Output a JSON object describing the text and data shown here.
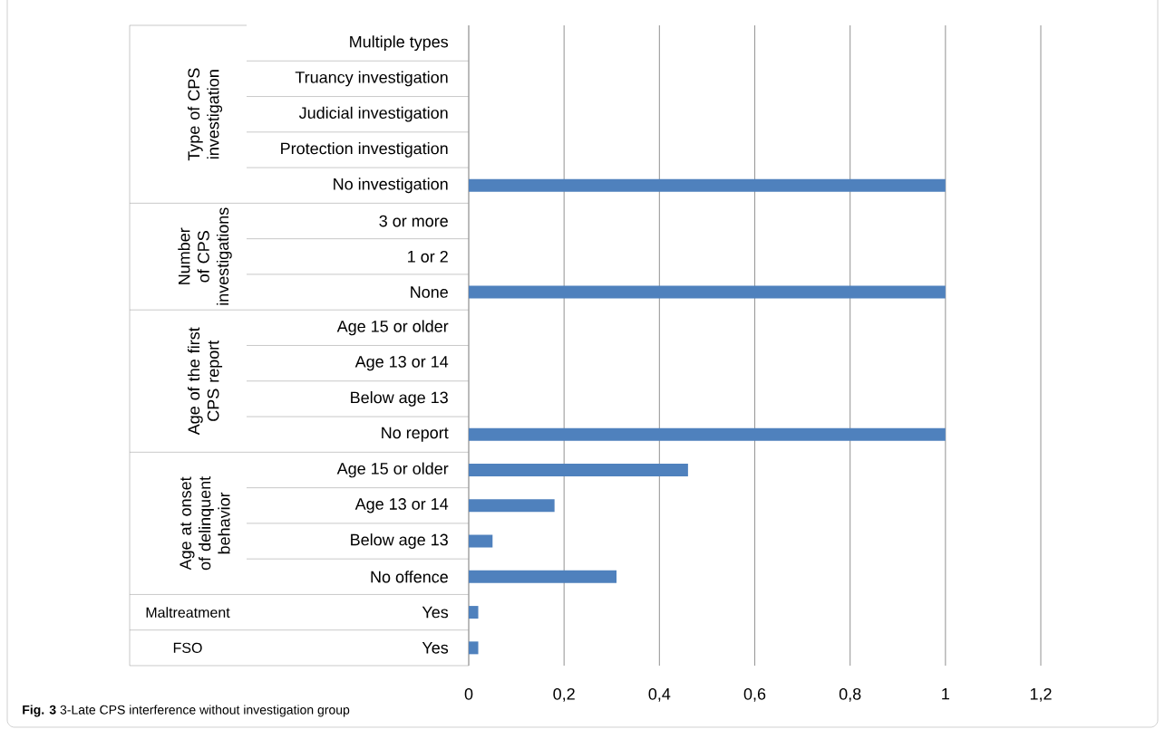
{
  "chart_data": {
    "type": "bar",
    "orientation": "horizontal",
    "categories": [
      "Multiple types",
      "Truancy investigation",
      "Judicial investigation",
      "Protection investigation",
      "No investigation",
      "3 or more",
      "1 or 2",
      "None",
      "Age 15 or older",
      "Age 13 or 14",
      "Below age 13",
      "No report",
      "Age 15 or older",
      "Age 13 or 14",
      "Below age 13",
      "No offence",
      "Yes",
      "Yes"
    ],
    "values": [
      0,
      0,
      0,
      0,
      1,
      0,
      0,
      1,
      0,
      0,
      0,
      1,
      0.46,
      0.18,
      0.05,
      0.31,
      0.02,
      0.02
    ],
    "color": "#4f81bd",
    "xlim": [
      0,
      1.2
    ],
    "xticks": [
      0,
      {
        "value": 0.2,
        "label": "0,2"
      },
      {
        "value": 0.4,
        "label": "0,4"
      },
      {
        "value": 0.6,
        "label": "0,6"
      },
      {
        "value": 0.8,
        "label": "0,8"
      },
      1,
      {
        "value": 1.2,
        "label": "1,2"
      }
    ],
    "grid": "x",
    "annotations": [
      "Type of CPS investigation",
      "Number of CPS investigations",
      "Age of the first CPS report",
      "Age at onset of delinquent behavior",
      "Maltreatment",
      "FSO",
      "**Fig. 3** 3-Late CPS interference without investigation group"
    ]
  }
}
